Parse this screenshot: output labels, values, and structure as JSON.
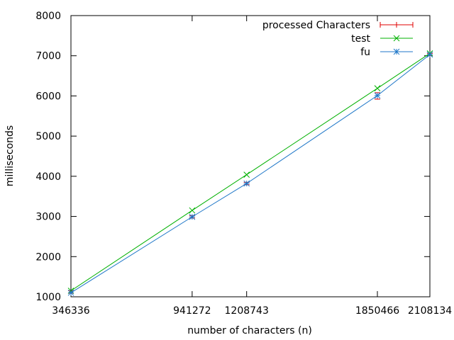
{
  "chart_data": {
    "type": "line",
    "xlabel": "number of characters (n)",
    "ylabel": "milliseconds",
    "xlim": [
      346336,
      2108134
    ],
    "ylim": [
      1000,
      8000
    ],
    "xticks": [
      346336,
      941272,
      1208743,
      1850466,
      2108134
    ],
    "yticks": [
      1000,
      2000,
      3000,
      4000,
      5000,
      6000,
      7000,
      8000
    ],
    "grid": false,
    "legend_position": "top-right",
    "series": [
      {
        "name": "processed Characters",
        "style": "errorbars",
        "color": "#e00000",
        "x": [
          346336,
          941272,
          1208743,
          1850466,
          2108134
        ],
        "y": [
          1120,
          2990,
          3820,
          6000,
          7030
        ],
        "err": [
          30,
          30,
          30,
          80,
          30
        ]
      },
      {
        "name": "test",
        "style": "linespoints",
        "marker": "x",
        "color": "#00b000",
        "x": [
          346336,
          941272,
          1208743,
          1850466,
          2108134
        ],
        "y": [
          1150,
          3150,
          4040,
          6190,
          7060
        ]
      },
      {
        "name": "fu",
        "style": "linespoints",
        "marker": "star",
        "color": "#1f77c8",
        "x": [
          346336,
          941272,
          1208743,
          1850466,
          2108134
        ],
        "y": [
          1100,
          2990,
          3820,
          6010,
          7030
        ]
      }
    ]
  }
}
